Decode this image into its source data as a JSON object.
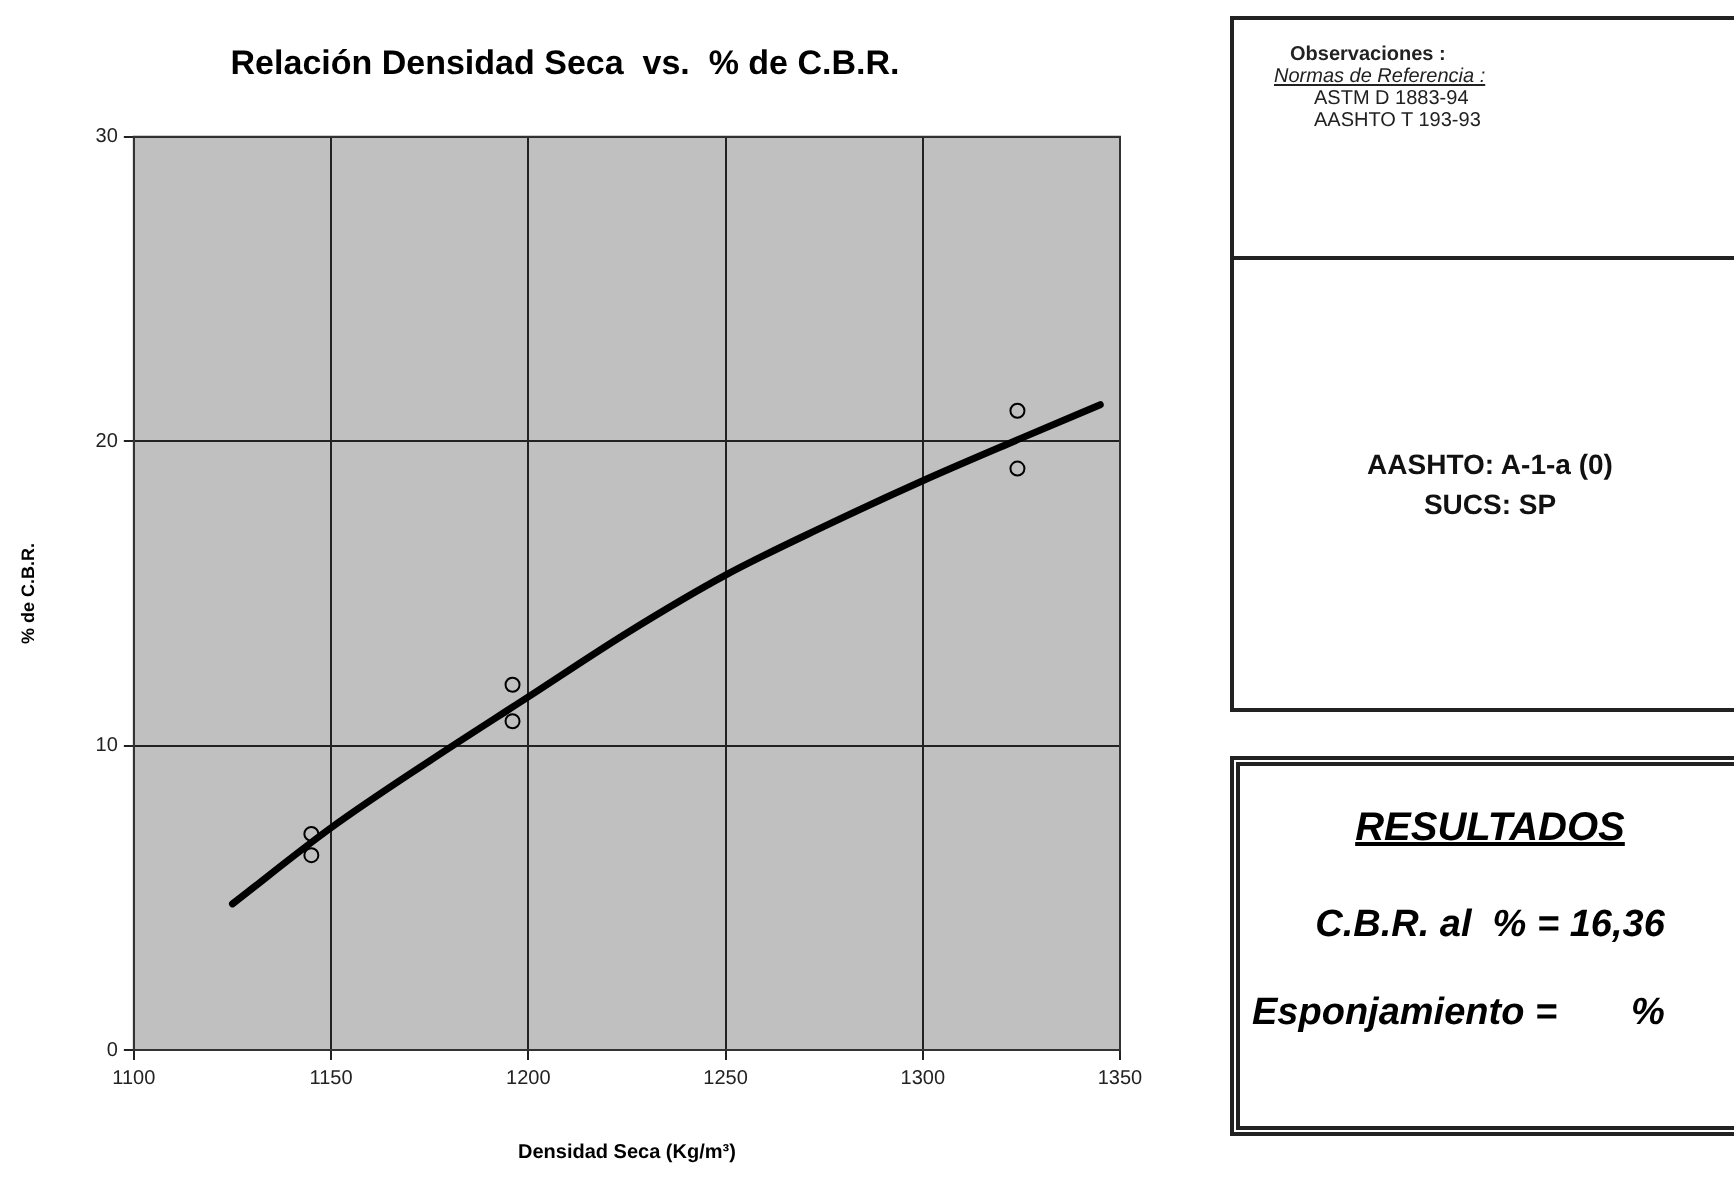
{
  "chart_data": [
    {
      "type": "scatter",
      "title": "Relación Densidad Seca  vs.  % de C.B.R.",
      "xlabel": "Densidad Seca (Kg/m³)",
      "ylabel": "% de C.B.R.",
      "xlim": [
        1100,
        1350
      ],
      "xticks": [
        1100,
        1150,
        1200,
        1250,
        1300,
        1350
      ],
      "ylim": [
        0,
        30
      ],
      "yticks": [
        0,
        10,
        20,
        30
      ],
      "grid": true,
      "legend": false,
      "series": [
        {
          "type": "scatter",
          "color": "#000000",
          "marker": "circle",
          "x": [
            1145,
            1145,
            1196,
            1196,
            1324,
            1324
          ],
          "values": [
            7.1,
            6.4,
            12.0,
            10.8,
            21.0,
            19.1
          ]
        },
        {
          "type": "line",
          "color": "#000000",
          "marker": "none",
          "line_style": "solid",
          "x": [
            1125,
            1150,
            1175,
            1200,
            1225,
            1250,
            1275,
            1300,
            1325,
            1345
          ],
          "values": [
            4.8,
            7.3,
            9.5,
            11.6,
            13.7,
            15.6,
            17.2,
            18.7,
            20.1,
            21.2
          ]
        }
      ]
    },
    {
      "type": "other",
      "title": "Observaciones :",
      "annotations": [
        "Normas de Referencia :",
        "ASTM D 1883-94",
        "AASHTO T 193-93"
      ]
    },
    {
      "type": "other",
      "annotations": [
        "AASHTO: A-1-a (0)",
        "SUCS: SP"
      ]
    },
    {
      "type": "other",
      "title": "RESULTADOS",
      "annotations": [
        "C.B.R. al  % = 16,36",
        "Esponjamiento =       %"
      ]
    }
  ]
}
